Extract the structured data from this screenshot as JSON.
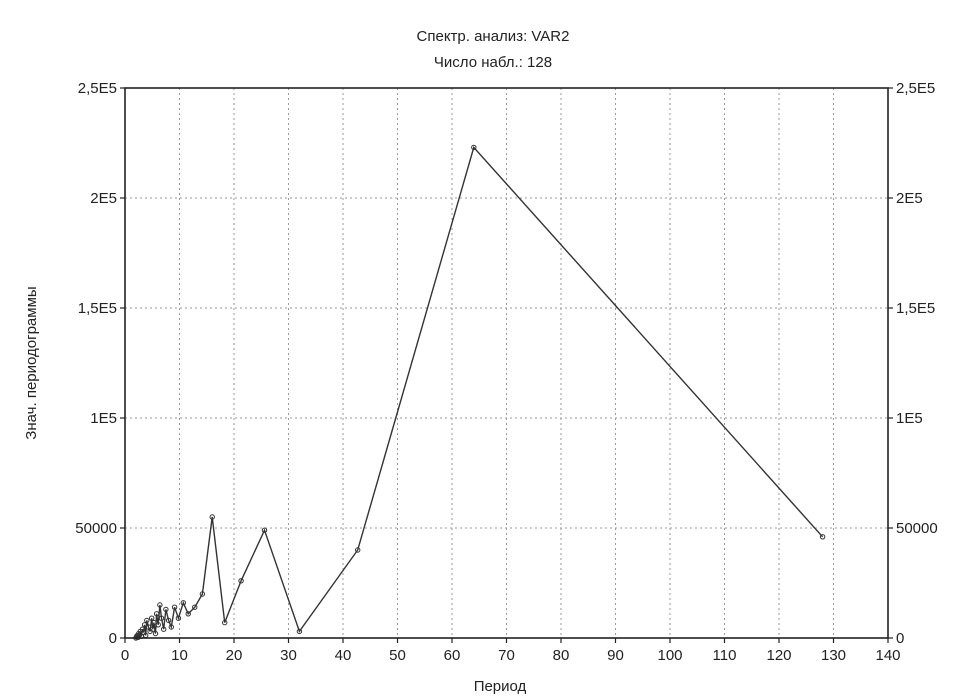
{
  "chart_data": {
    "type": "line",
    "title": "Спектр. анализ: VAR2",
    "subtitle": "Число набл.: 128",
    "xlabel": "Период",
    "ylabel": "Знач. периодограммы",
    "xlim": [
      0,
      140
    ],
    "ylim": [
      0,
      250000
    ],
    "x_ticks": [
      0,
      10,
      20,
      30,
      40,
      50,
      60,
      70,
      80,
      90,
      100,
      110,
      120,
      130,
      140
    ],
    "x_tick_labels": [
      "0",
      "10",
      "20",
      "30",
      "40",
      "50",
      "60",
      "70",
      "80",
      "90",
      "100",
      "110",
      "120",
      "130",
      "140"
    ],
    "y_ticks": [
      0,
      50000,
      100000,
      150000,
      200000,
      250000
    ],
    "y_tick_labels_left": [
      "0",
      "50000",
      "1E5",
      "1,5E5",
      "2E5",
      "2,5E5"
    ],
    "y_tick_labels_right": [
      "0",
      "50000",
      "1E5",
      "1,5E5",
      "2E5",
      "2,5E5"
    ],
    "grid": true,
    "series": [
      {
        "x": [
          2.0,
          2.1,
          2.2,
          2.4,
          2.5,
          2.7,
          2.8,
          3.0,
          3.2,
          3.4,
          3.6,
          3.8,
          4.0,
          4.3,
          4.6,
          4.9,
          5.1,
          5.3,
          5.6,
          5.8,
          6.1,
          6.4,
          6.7,
          7.1,
          7.5,
          8.0,
          8.5,
          9.1,
          9.8,
          10.7,
          11.6,
          12.8,
          14.2,
          16.0,
          18.3,
          21.3,
          25.6,
          32.0,
          42.7,
          64.0,
          128.0
        ],
        "y": [
          0,
          500,
          1000,
          300,
          2000,
          1500,
          3000,
          800,
          4000,
          2500,
          6000,
          1200,
          8000,
          5000,
          3000,
          9000,
          4000,
          7000,
          2000,
          11000,
          6000,
          15000,
          9000,
          4000,
          13000,
          8000,
          5000,
          14000,
          9000,
          16000,
          11000,
          14000,
          20000,
          55000,
          7000,
          26000,
          49000,
          3000,
          40000,
          223000,
          46000
        ]
      }
    ]
  }
}
